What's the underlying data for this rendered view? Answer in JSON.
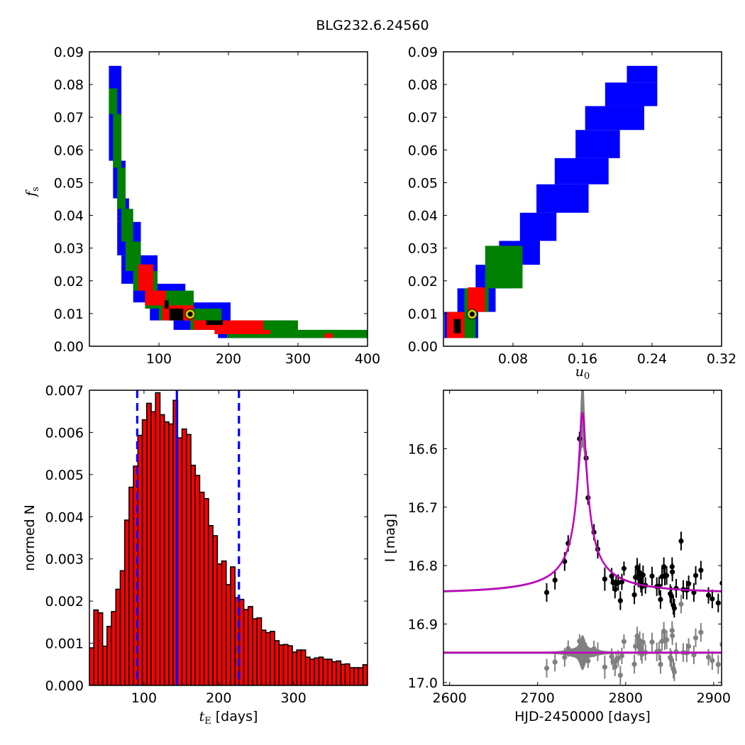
{
  "title": "BLG232.6.24560",
  "chart_data": [
    {
      "type": "heatmap",
      "panel": "top-left",
      "xlabel": {
        "main": "",
        "sub": ""
      },
      "ylabel": {
        "main": "f",
        "sub": "s"
      },
      "xlim": [
        0,
        400
      ],
      "ylim": [
        0,
        0.09
      ],
      "xticks": {
        "values": [
          100,
          200,
          300,
          400
        ],
        "labels": [
          "100",
          "200",
          "300",
          "400"
        ]
      },
      "yticks": {
        "values": [
          0,
          0.01,
          0.02,
          0.03,
          0.04,
          0.05,
          0.06,
          0.07,
          0.08,
          0.09
        ],
        "labels": [
          "0.00",
          "0.01",
          "0.02",
          "0.03",
          "0.04",
          "0.05",
          "0.06",
          "0.07",
          "0.08",
          "0.09"
        ]
      },
      "levels": [
        {
          "name": "level-3",
          "color": "#0000ff",
          "cells": [
            [
              28,
              46,
              0.0567,
              0.0857
            ],
            [
              34,
              52,
              0.0452,
              0.0567
            ],
            [
              40,
              57,
              0.038,
              0.0452
            ],
            [
              40,
              74,
              0.0278,
              0.038
            ],
            [
              46,
              98,
              0.0191,
              0.0278
            ],
            [
              63,
              138,
              0.0134,
              0.0191
            ],
            [
              87,
              203,
              0.0079,
              0.0134
            ],
            [
              121,
              291,
              0.005,
              0.0079
            ],
            [
              185,
              367,
              0.0025,
              0.005
            ],
            [
              238,
              400,
              0.0025,
              0.0039
            ]
          ]
        },
        {
          "name": "level-2",
          "color": "#008000",
          "cells": [
            [
              28,
              40,
              0.071,
              0.0788
            ],
            [
              34,
              46,
              0.0546,
              0.071
            ],
            [
              40,
              52,
              0.042,
              0.0546
            ],
            [
              46,
              63,
              0.032,
              0.042
            ],
            [
              52,
              74,
              0.023,
              0.032
            ],
            [
              63,
              98,
              0.017,
              0.023
            ],
            [
              80,
              150,
              0.0115,
              0.017
            ],
            [
              100,
              190,
              0.0079,
              0.0115
            ],
            [
              145,
              300,
              0.005,
              0.0079
            ],
            [
              198,
              400,
              0.0025,
              0.005
            ]
          ]
        },
        {
          "name": "level-1",
          "color": "#ff0000",
          "cells": [
            [
              70,
              92,
              0.017,
              0.025
            ],
            [
              80,
              110,
              0.0125,
              0.017
            ],
            [
              105,
              150,
              0.0079,
              0.0125
            ],
            [
              150,
              250,
              0.005,
              0.0079
            ],
            [
              180,
              260,
              0.0037,
              0.005
            ],
            [
              338,
              350,
              0.0025,
              0.0039
            ]
          ]
        },
        {
          "name": "level-0",
          "color": "#000000",
          "cells": [
            [
              108,
              114,
              0.0115,
              0.014
            ],
            [
              115,
              135,
              0.0079,
              0.0115
            ],
            [
              168,
              192,
              0.0065,
              0.0079
            ]
          ]
        }
      ],
      "best_fit": {
        "x": 145,
        "y": 0.0098,
        "color": "#c8c800"
      }
    },
    {
      "type": "heatmap",
      "panel": "top-right",
      "xlabel": {
        "main": "u",
        "sub": "0"
      },
      "ylabel": {
        "main": "",
        "sub": ""
      },
      "xlim": [
        0,
        0.32
      ],
      "ylim": [
        0,
        0.09
      ],
      "xticks": {
        "values": [
          0.08,
          0.16,
          0.24,
          0.32
        ],
        "labels": [
          "0.08",
          "0.16",
          "0.24",
          "0.32"
        ]
      },
      "yticks": {
        "values": [
          0,
          0.01,
          0.02,
          0.03,
          0.04,
          0.05,
          0.06,
          0.07,
          0.08,
          0.09
        ],
        "labels": [
          "0.00",
          "0.01",
          "0.02",
          "0.03",
          "0.04",
          "0.05",
          "0.06",
          "0.07",
          "0.08",
          "0.09"
        ]
      },
      "levels": [
        {
          "name": "level-3",
          "color": "#0000ff",
          "cells": [
            [
              0.211,
              0.246,
              0.0806,
              0.0857
            ],
            [
              0.186,
              0.246,
              0.0734,
              0.0806
            ],
            [
              0.163,
              0.231,
              0.0661,
              0.0734
            ],
            [
              0.152,
              0.203,
              0.0575,
              0.0661
            ],
            [
              0.128,
              0.19,
              0.0495,
              0.0575
            ],
            [
              0.107,
              0.167,
              0.0408,
              0.0495
            ],
            [
              0.088,
              0.13,
              0.0322,
              0.0408
            ],
            [
              0.064,
              0.111,
              0.0249,
              0.0322
            ],
            [
              0.037,
              0.08,
              0.0177,
              0.0249
            ],
            [
              0.016,
              0.06,
              0.0105,
              0.0177
            ],
            [
              0.001,
              0.04,
              0.0025,
              0.0105
            ]
          ]
        },
        {
          "name": "level-2",
          "color": "#008000",
          "cells": [
            [
              0.048,
              0.091,
              0.0177,
              0.0307
            ],
            [
              0.024,
              0.052,
              0.0105,
              0.0177
            ],
            [
              0.004,
              0.037,
              0.0025,
              0.0105
            ]
          ]
        },
        {
          "name": "level-1",
          "color": "#ff0000",
          "cells": [
            [
              0.028,
              0.048,
              0.0105,
              0.018
            ],
            [
              0.004,
              0.024,
              0.0025,
              0.0105
            ]
          ]
        },
        {
          "name": "level-0",
          "color": "#000000",
          "cells": [
            [
              0.012,
              0.02,
              0.004,
              0.0083
            ]
          ]
        }
      ],
      "best_fit": {
        "x": 0.033,
        "y": 0.0098,
        "color": "#c8c800"
      }
    },
    {
      "type": "bar",
      "panel": "bottom-left",
      "xlabel": {
        "main": "t",
        "sub": "E",
        "suffix": " [days]"
      },
      "ylabel": {
        "main": "normed N",
        "sub": ""
      },
      "xlim": [
        27,
        399
      ],
      "ylim": [
        0,
        0.007
      ],
      "xticks": {
        "values": [
          100,
          200,
          300
        ],
        "labels": [
          "100",
          "200",
          "300"
        ]
      },
      "yticks": {
        "values": [
          0,
          0.001,
          0.002,
          0.003,
          0.004,
          0.005,
          0.006,
          0.007
        ],
        "labels": [
          "0.000",
          "0.001",
          "0.002",
          "0.003",
          "0.004",
          "0.005",
          "0.006",
          "0.007"
        ]
      },
      "bin_start": 27,
      "bin_width": 5.9,
      "values": [
        0.00089,
        0.00179,
        0.00172,
        0.00093,
        0.0014,
        0.00175,
        0.00228,
        0.00272,
        0.00392,
        0.0047,
        0.0052,
        0.00593,
        0.0063,
        0.00669,
        0.00649,
        0.00694,
        0.00642,
        0.00625,
        0.0062,
        0.00676,
        0.00587,
        0.00608,
        0.00595,
        0.00522,
        0.00498,
        0.00458,
        0.00443,
        0.00379,
        0.00355,
        0.00288,
        0.00295,
        0.00239,
        0.00281,
        0.00208,
        0.00204,
        0.0018,
        0.00187,
        0.00158,
        0.0016,
        0.00131,
        0.00125,
        0.00128,
        0.00106,
        0.00096,
        0.00097,
        0.00094,
        0.00079,
        0.00084,
        0.00084,
        0.00067,
        0.00062,
        0.00065,
        0.00067,
        0.00062,
        0.00062,
        0.00056,
        0.00058,
        0.0005,
        0.00051,
        0.00042,
        0.00042,
        0.00042,
        0.00049
      ],
      "bar_color": "#ff0000",
      "vlines": [
        {
          "name": "lower-bound",
          "x": 91,
          "style": "dashed",
          "color": "#0000ff"
        },
        {
          "name": "median",
          "x": 144,
          "style": "solid",
          "color": "#0000ff"
        },
        {
          "name": "upper-bound",
          "x": 227,
          "style": "dashed",
          "color": "#0000ff"
        }
      ]
    },
    {
      "type": "scatter",
      "panel": "bottom-right",
      "xlabel": {
        "main": "HJD-2450000 [days]",
        "sub": ""
      },
      "ylabel": {
        "main": "I [mag]",
        "sub": ""
      },
      "xlim": [
        2593,
        2909
      ],
      "ylim": [
        17.005,
        16.5
      ],
      "xticks": {
        "values": [
          2600,
          2700,
          2800,
          2900
        ],
        "labels": [
          "2600",
          "2700",
          "2800",
          "2900"
        ]
      },
      "yticks": {
        "values": [
          16.6,
          16.7,
          16.8,
          16.9,
          17.0
        ],
        "labels": [
          "16.6",
          "16.7",
          "16.8",
          "16.9",
          "17.0"
        ]
      },
      "model": {
        "t0": 2751,
        "tE": 144,
        "u0": 0.029,
        "fs": 0.0098,
        "I_base": 16.847,
        "color": "#bf00bf",
        "band_color": "#808080"
      },
      "residual_offset": 16.949,
      "points": [
        [
          2710.3,
          16.846,
          0.016
        ],
        [
          2719.7,
          16.825,
          0.016
        ],
        [
          2730.7,
          16.793,
          0.016
        ],
        [
          2734.7,
          16.762,
          0.014
        ],
        [
          2747.6,
          16.583,
          0.012
        ],
        [
          2755.1,
          16.616,
          0.012
        ],
        [
          2757.3,
          16.684,
          0.012
        ],
        [
          2764.0,
          16.743,
          0.014
        ],
        [
          2768.3,
          16.772,
          0.016
        ],
        [
          2776.3,
          16.823,
          0.02
        ],
        [
          2784.1,
          16.818,
          0.014
        ],
        [
          2785.7,
          16.829,
          0.014
        ],
        [
          2787.9,
          16.84,
          0.016
        ],
        [
          2789.2,
          16.831,
          0.014
        ],
        [
          2791.6,
          16.829,
          0.014
        ],
        [
          2794.0,
          16.86,
          0.016
        ],
        [
          2795.7,
          16.828,
          0.014
        ],
        [
          2798.1,
          16.805,
          0.012
        ],
        [
          2809.9,
          16.85,
          0.016
        ],
        [
          2811.2,
          16.82,
          0.014
        ],
        [
          2813.1,
          16.803,
          0.016
        ],
        [
          2814.4,
          16.821,
          0.016
        ],
        [
          2816.0,
          16.812,
          0.016
        ],
        [
          2817.4,
          16.83,
          0.016
        ],
        [
          2818.5,
          16.836,
          0.016
        ],
        [
          2819.8,
          16.816,
          0.016
        ],
        [
          2822.5,
          16.834,
          0.014
        ],
        [
          2830.0,
          16.818,
          0.016
        ],
        [
          2835.4,
          16.836,
          0.016
        ],
        [
          2838.0,
          16.835,
          0.016
        ],
        [
          2839.6,
          16.858,
          0.016
        ],
        [
          2841.3,
          16.819,
          0.016
        ],
        [
          2843.4,
          16.802,
          0.016
        ],
        [
          2844.5,
          16.818,
          0.016
        ],
        [
          2846.6,
          16.817,
          0.016
        ],
        [
          2850.7,
          16.848,
          0.016
        ],
        [
          2852.0,
          16.852,
          0.016
        ],
        [
          2852.8,
          16.802,
          0.016
        ],
        [
          2853.1,
          16.811,
          0.016
        ],
        [
          2854.2,
          16.868,
          0.016
        ],
        [
          2855.3,
          16.873,
          0.016
        ],
        [
          2857.4,
          16.839,
          0.016
        ],
        [
          2863.0,
          16.758,
          0.016
        ],
        [
          2865.4,
          16.841,
          0.016
        ],
        [
          2869.4,
          16.842,
          0.016
        ],
        [
          2871.6,
          16.831,
          0.014
        ],
        [
          2877.5,
          16.846,
          0.016
        ],
        [
          2879.6,
          16.817,
          0.016
        ],
        [
          2885.5,
          16.808,
          0.016
        ],
        [
          2894.1,
          16.851,
          0.014
        ],
        [
          2898.4,
          16.857,
          0.016
        ],
        [
          2905.2,
          16.864,
          0.016
        ],
        [
          2909.7,
          16.83,
          0.014
        ]
      ],
      "point_color": "#000000",
      "residual_color": "#808080"
    }
  ]
}
